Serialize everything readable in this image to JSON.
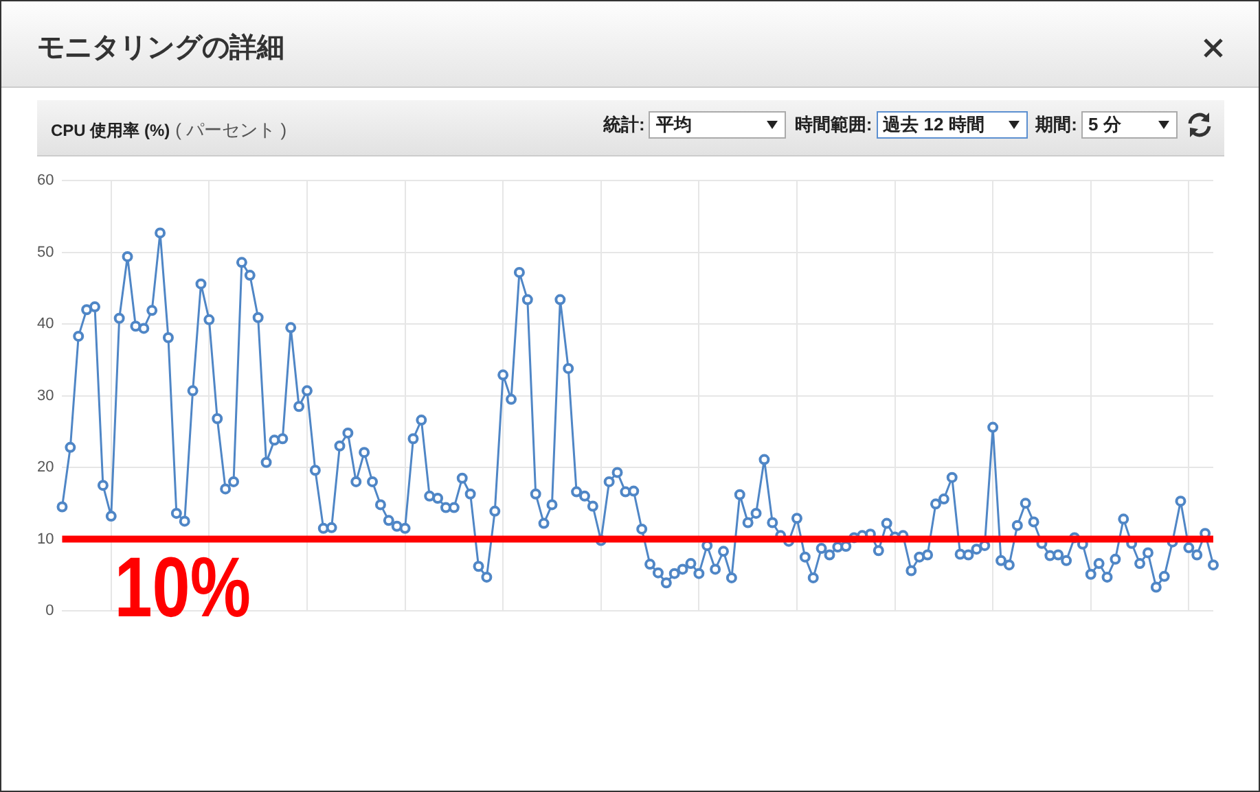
{
  "chart_data": {
    "type": "line",
    "title": "モニタリングの詳細",
    "subtitle": "CPU 使用率 (%)",
    "ylabel": "( パーセント )",
    "annotations": [
      "統計:",
      "平均",
      "時間範囲:",
      "過去 12 時間",
      "期間:",
      "5 分"
    ],
    "categories": [
      null,
      null,
      null,
      null,
      null,
      null,
      null,
      null,
      null,
      null,
      null,
      null,
      null,
      null,
      null,
      null,
      null,
      null,
      null,
      null,
      null,
      null,
      null,
      null,
      null,
      null,
      null,
      null,
      null,
      null,
      null,
      null,
      null,
      null,
      null,
      null,
      null,
      null,
      null,
      null,
      null,
      null,
      null,
      null,
      null,
      null,
      null,
      null,
      null,
      null,
      null,
      null,
      null,
      null,
      null,
      null,
      null,
      null,
      null,
      null,
      null,
      null,
      null,
      null,
      null,
      null,
      null,
      null,
      null,
      null,
      null,
      null,
      null,
      null,
      null,
      null,
      null,
      null,
      null,
      null,
      null,
      null,
      null,
      null,
      null,
      null,
      null,
      null,
      null,
      null,
      null,
      null,
      null,
      null,
      null,
      null,
      null,
      null,
      null,
      null,
      null,
      null,
      null,
      null,
      null,
      null,
      null,
      null,
      null,
      null,
      null,
      null,
      null,
      null,
      null,
      null,
      null,
      null,
      null,
      null,
      null,
      null,
      null,
      null,
      null,
      null,
      null,
      null,
      null,
      null,
      null,
      null,
      null,
      null,
      null,
      null,
      null,
      null,
      null,
      null,
      null,
      null
    ],
    "series": [
      {
        "color": "#4f86c6",
        "values": [
          14.5,
          22.8,
          38.3,
          42,
          42.4,
          17.5,
          13.2,
          40.8,
          49.4,
          39.7,
          39.4,
          41.9,
          52.7,
          38.1,
          13.6,
          12.5,
          30.7,
          45.6,
          40.6,
          26.8,
          17,
          18,
          48.6,
          46.8,
          40.9,
          20.7,
          23.8,
          24,
          39.5,
          28.5,
          30.7,
          19.6,
          11.5,
          11.6,
          23,
          24.8,
          18,
          22.1,
          18,
          14.8,
          12.6,
          11.8,
          11.5,
          24,
          26.6,
          16,
          15.7,
          14.4,
          14.4,
          18.5,
          16.3,
          6.2,
          4.7,
          13.9,
          32.9,
          29.5,
          47.2,
          43.4,
          16.3,
          12.2,
          14.8,
          43.4,
          33.8,
          16.6,
          16,
          14.6,
          9.8,
          18,
          19.3,
          16.6,
          16.7,
          11.4,
          6.5,
          5.3,
          3.9,
          5.2,
          5.8,
          6.6,
          5.2,
          9.1,
          5.8,
          8.3,
          4.6,
          16.2,
          12.3,
          13.6,
          21.1,
          12.3,
          10.5,
          9.7,
          12.9,
          7.5,
          4.6,
          8.7,
          7.8,
          8.9,
          9,
          10.2,
          10.5,
          10.7,
          8.4,
          12.2,
          10.3,
          10.5,
          5.6,
          7.5,
          7.8,
          14.9,
          15.6,
          18.6,
          7.9,
          7.8,
          8.6,
          9.1,
          25.6,
          7,
          6.4,
          11.9,
          15,
          12.4,
          9.4,
          7.7,
          7.8,
          7,
          10.2,
          9.3,
          5.1,
          6.6,
          4.7,
          7.2,
          12.8,
          9.4,
          6.6,
          8.1,
          3.3,
          4.8,
          9.6,
          15.3,
          8.8,
          7.8,
          10.8,
          6.4
        ]
      }
    ],
    "ylim": [
      0,
      60
    ],
    "yticks": [
      0,
      10,
      20,
      30,
      40,
      50,
      60
    ],
    "grid": true,
    "legend": false,
    "tick_labels": "y",
    "marker": "circle",
    "line_style": "solid",
    "ref_lines": [
      {
        "axis": "y",
        "value": 10,
        "label": "10%",
        "color": "#ff0000"
      }
    ]
  }
}
